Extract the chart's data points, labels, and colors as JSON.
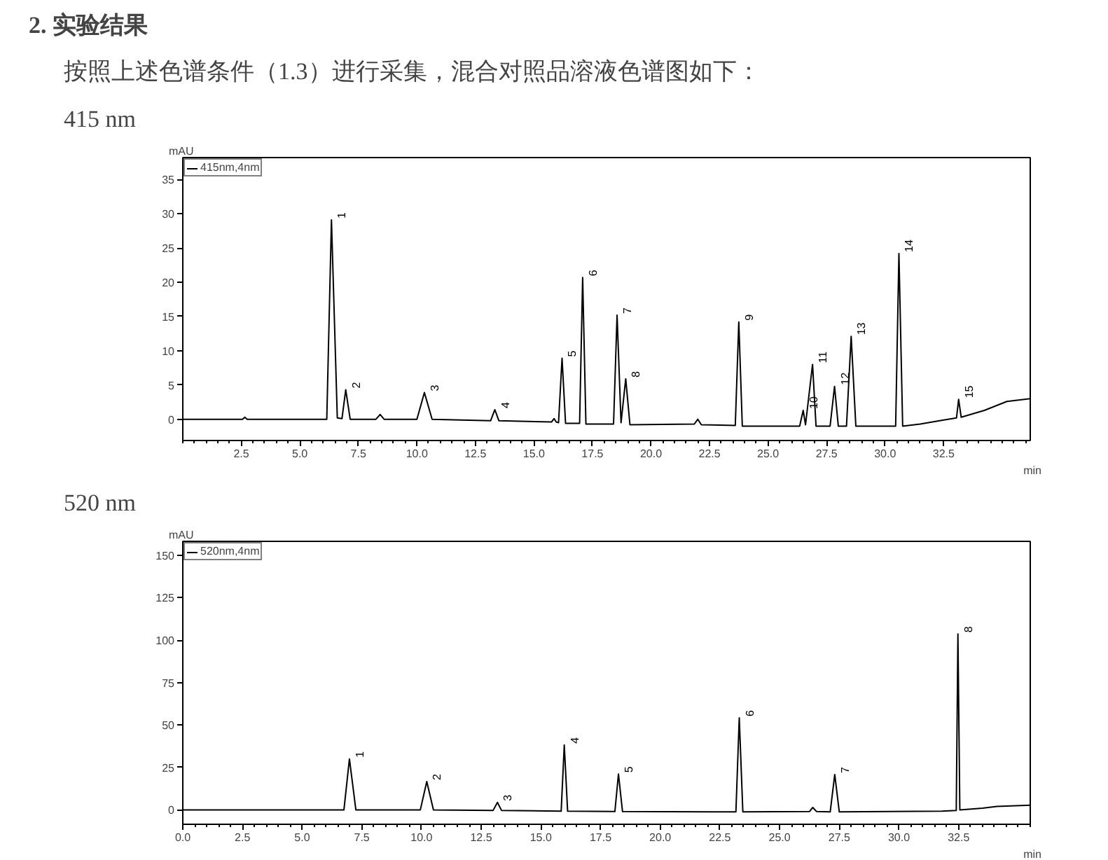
{
  "chart_data": [
    {
      "type": "line",
      "title": "415 nm",
      "ylabel": "mAU",
      "xlabel": "min",
      "annotations": [
        "2. 实验结果",
        "按照上述色谱条件（1.3）进行采集，混合对照品溶液色谱图如下：",
        {
          "text": "1",
          "x": 6.35,
          "y": 29.1
        },
        {
          "text": "2",
          "x": 6.96,
          "y": 4.3
        },
        {
          "text": "3",
          "x": 10.32,
          "y": 3.9
        },
        {
          "text": "4",
          "x": 13.33,
          "y": 1.4
        },
        {
          "text": "5",
          "x": 16.2,
          "y": 8.9
        },
        {
          "text": "6",
          "x": 17.08,
          "y": 20.7
        },
        {
          "text": "7",
          "x": 18.55,
          "y": 15.2
        },
        {
          "text": "8",
          "x": 18.92,
          "y": 5.9
        },
        {
          "text": "9",
          "x": 23.75,
          "y": 14.2
        },
        {
          "text": "10",
          "x": 26.5,
          "y": 1.3
        },
        {
          "text": "11",
          "x": 26.9,
          "y": 8.0
        },
        {
          "text": "12",
          "x": 27.84,
          "y": 4.8
        },
        {
          "text": "13",
          "x": 28.55,
          "y": 12.1
        },
        {
          "text": "14",
          "x": 30.59,
          "y": 24.2
        },
        {
          "text": "15",
          "x": 33.14,
          "y": 2.9
        }
      ],
      "series": [
        {
          "name": "415nm,4nm",
          "color": "#000000",
          "x": [
            0,
            2.55,
            2.65,
            2.75,
            6.15,
            6.35,
            6.6,
            6.8,
            6.96,
            7.15,
            8.25,
            8.43,
            8.6,
            10.0,
            10.32,
            10.65,
            13.15,
            13.33,
            13.5,
            15.75,
            15.86,
            15.95,
            16.05,
            16.2,
            16.35,
            16.95,
            17.08,
            17.22,
            18.4,
            18.55,
            18.72,
            18.92,
            19.1,
            21.85,
            22.0,
            22.15,
            23.6,
            23.75,
            23.9,
            26.35,
            26.5,
            26.6,
            26.9,
            27.05,
            27.65,
            27.84,
            28.0,
            28.35,
            28.55,
            28.75,
            30.45,
            30.59,
            30.75,
            31.5,
            32.5,
            33.05,
            33.14,
            33.25,
            34.24,
            35.2,
            36.2
          ],
          "values": [
            0,
            0,
            0.3,
            0,
            0,
            29.1,
            0.2,
            0.1,
            4.3,
            0,
            0,
            0.7,
            0,
            0,
            3.9,
            0,
            -0.2,
            1.4,
            -0.2,
            -0.4,
            0.1,
            -0.4,
            -0.5,
            8.9,
            -0.6,
            -0.6,
            20.7,
            -0.7,
            -0.7,
            15.2,
            -0.5,
            5.9,
            -0.8,
            -0.7,
            0.0,
            -0.8,
            -0.9,
            14.2,
            -1.0,
            -1.0,
            1.3,
            -0.8,
            8.0,
            -1.0,
            -1.0,
            4.8,
            -1.0,
            -1.0,
            12.1,
            -1.0,
            -1.0,
            24.2,
            -1.0,
            -0.7,
            -0.1,
            0.2,
            2.9,
            0.3,
            1.3,
            2.6,
            3.0
          ]
        }
      ],
      "xlim": [
        0,
        36.2
      ],
      "ylim": [
        -3.1,
        38.2
      ],
      "xticks": [
        2.5,
        {
          "value": 5,
          "label": "5.0"
        },
        7.5,
        {
          "value": 10,
          "label": "10.0"
        },
        12.5,
        {
          "value": 15,
          "label": "15.0"
        },
        17.5,
        {
          "value": 20,
          "label": "20.0"
        },
        22.5,
        {
          "value": 25,
          "label": "25.0"
        },
        27.5,
        {
          "value": 30,
          "label": "30.0"
        },
        32.5
      ],
      "yticks": [
        0,
        5,
        10,
        15,
        20,
        25,
        30,
        35
      ],
      "grid": false,
      "legend": "top left"
    },
    {
      "type": "line",
      "title": "520 nm",
      "ylabel": "mAU",
      "xlabel": "min",
      "annotations": [
        {
          "text": "1",
          "x": 6.98,
          "y": 30.0
        },
        {
          "text": "2",
          "x": 10.22,
          "y": 16.7
        },
        {
          "text": "3",
          "x": 13.18,
          "y": 4.4
        },
        {
          "text": "4",
          "x": 15.98,
          "y": 38.2
        },
        {
          "text": "5",
          "x": 18.25,
          "y": 21.1
        },
        {
          "text": "6",
          "x": 23.31,
          "y": 54.2
        },
        {
          "text": "7",
          "x": 27.31,
          "y": 20.8
        },
        {
          "text": "8",
          "x": 32.47,
          "y": 103.6
        }
      ],
      "series": [
        {
          "name": "520nm,4nm",
          "color": "#000000",
          "x": [
            0,
            2.6,
            6.75,
            6.98,
            7.25,
            9.95,
            10.22,
            10.5,
            13.0,
            13.18,
            13.35,
            15.85,
            15.98,
            16.12,
            18.1,
            18.25,
            18.42,
            23.17,
            23.31,
            23.46,
            26.25,
            26.39,
            26.55,
            27.12,
            27.31,
            27.5,
            31.8,
            32.4,
            32.47,
            32.55,
            33.5,
            34.1,
            35.5
          ],
          "values": [
            0,
            0,
            0,
            30.0,
            0,
            0,
            16.7,
            0,
            -0.3,
            4.4,
            -0.3,
            -0.8,
            38.2,
            -0.8,
            -1.0,
            21.1,
            -1.0,
            -1.2,
            54.2,
            -1.2,
            -1.0,
            1.4,
            -1.0,
            -1.2,
            20.8,
            -1.2,
            -0.8,
            -0.3,
            103.6,
            0,
            1.0,
            2.0,
            2.7
          ]
        }
      ],
      "xlim": [
        0,
        35.5
      ],
      "ylim": [
        -8.5,
        158.2
      ],
      "xticks": [
        {
          "value": 0,
          "label": "0.0"
        },
        2.5,
        {
          "value": 5,
          "label": "5.0"
        },
        7.5,
        {
          "value": 10,
          "label": "10.0"
        },
        12.5,
        {
          "value": 15,
          "label": "15.0"
        },
        17.5,
        {
          "value": 20,
          "label": "20.0"
        },
        22.5,
        {
          "value": 25,
          "label": "25.0"
        },
        27.5,
        {
          "value": 30,
          "label": "30.0"
        },
        32.5
      ],
      "yticks": [
        0,
        25,
        50,
        75,
        100,
        125,
        150
      ],
      "grid": false,
      "legend": "top left"
    }
  ]
}
